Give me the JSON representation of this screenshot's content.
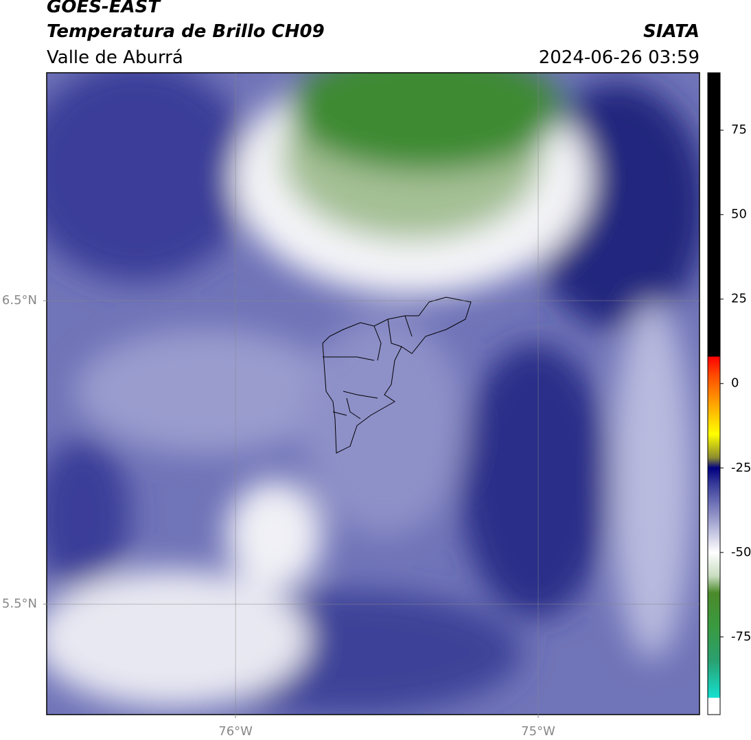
{
  "header": {
    "satellite": "GOES-EAST",
    "title": "Temperatura de Brillo CH09",
    "region": "Valle de Aburrá",
    "source": "SIATA",
    "datetime": "2024-06-26 03:59"
  },
  "map": {
    "xlim": [
      -76.624,
      -74.467
    ],
    "ylim": [
      5.136,
      7.251
    ],
    "xticks": [
      {
        "value": -76,
        "label": "76°W"
      },
      {
        "value": -75,
        "label": "75°W"
      }
    ],
    "yticks": [
      {
        "value": 6.5,
        "label": "6.5°N"
      },
      {
        "value": 5.5,
        "label": "5.5°N"
      }
    ],
    "grid": true
  },
  "colorbar": {
    "lim": [
      -98,
      92
    ],
    "ticks": [
      -75,
      -50,
      -25,
      0,
      25,
      50,
      75
    ],
    "stops": [
      {
        "value": -98,
        "color": "#ffffff"
      },
      {
        "value": -93,
        "color": "#ffffff"
      },
      {
        "value": -93,
        "color": "#14e0d0"
      },
      {
        "value": -82,
        "color": "#2aa070"
      },
      {
        "value": -72,
        "color": "#3a9a40"
      },
      {
        "value": -62,
        "color": "#4a8a2a"
      },
      {
        "value": -57,
        "color": "#c8dcc0"
      },
      {
        "value": -50,
        "color": "#ffffff"
      },
      {
        "value": -40,
        "color": "#9a9ccc"
      },
      {
        "value": -30,
        "color": "#3a3e9a"
      },
      {
        "value": -25,
        "color": "#000080"
      },
      {
        "value": -22,
        "color": "#8a8a30"
      },
      {
        "value": -15,
        "color": "#ffff00"
      },
      {
        "value": -5,
        "color": "#ff9900"
      },
      {
        "value": 3,
        "color": "#ff4400"
      },
      {
        "value": 8,
        "color": "#ff0000"
      },
      {
        "value": 8,
        "color": "#000000"
      },
      {
        "value": 92,
        "color": "#000000"
      }
    ]
  }
}
